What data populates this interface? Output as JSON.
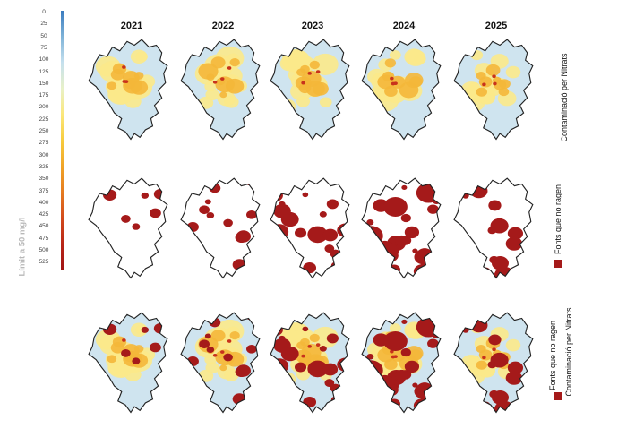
{
  "scale": {
    "ticks": [
      "0",
      "25",
      "50",
      "75",
      "100",
      "125",
      "150",
      "175",
      "200",
      "225",
      "250",
      "275",
      "300",
      "325",
      "350",
      "375",
      "400",
      "425",
      "450",
      "475",
      "500",
      "525"
    ],
    "limit_label": "Límit a 50 mg/l",
    "colors": [
      "#3a7bbf",
      "#7fb3d8",
      "#c5e0ee",
      "#e8f1c8",
      "#fbe77a",
      "#f7cc3e",
      "#f0a428",
      "#e57b20",
      "#d24a1c",
      "#b82618",
      "#a01414"
    ]
  },
  "years": [
    "2021",
    "2022",
    "2023",
    "2024",
    "2025"
  ],
  "rows": [
    {
      "label": "Contaminació per Nitrats",
      "legend": ""
    },
    {
      "label": "",
      "legend": "Fonts que no ragen"
    },
    {
      "label": "Contaminació per Nitrats",
      "legend": "Fonts que no ragen"
    }
  ],
  "colors": {
    "dry": "#a51a1a",
    "outline": "#222222",
    "base_blue": "#cfe4ef",
    "hot": "#f4b73a"
  },
  "dry_coverage": [
    0.08,
    0.22,
    0.38,
    0.55,
    0.3
  ]
}
